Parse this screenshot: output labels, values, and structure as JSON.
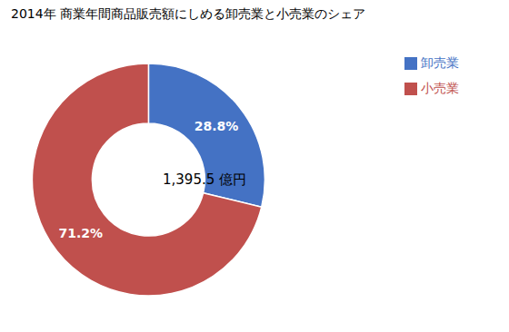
{
  "chart_data": {
    "type": "donut",
    "title": "2014年 商業年間商品販売額にしめる卸売業と小売業のシェア",
    "categories": [
      "卸売業",
      "小売業"
    ],
    "values": [
      28.8,
      71.2
    ],
    "value_labels": [
      "28.8%",
      "71.2%"
    ],
    "colors": [
      "#4472C4",
      "#C0504D"
    ],
    "annotation": "1,395.5 億円",
    "data_labels": true,
    "legend": "right"
  }
}
